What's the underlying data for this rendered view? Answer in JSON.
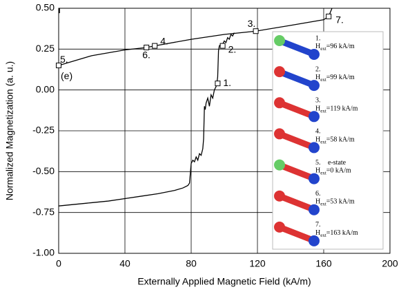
{
  "chart_data": {
    "type": "line",
    "x_label": "Externally Applied Magnetic Field (kA/m)",
    "y_label": "Normalized Magnetization (a. u.)",
    "xlim": [
      0,
      200
    ],
    "ylim": [
      -1.0,
      0.5
    ],
    "xticks": [
      0,
      40,
      80,
      120,
      160,
      200
    ],
    "yticks": [
      {
        "value": -1.0,
        "label": "-1.00"
      },
      {
        "value": -0.75,
        "label": "-0.75"
      },
      {
        "value": -0.5,
        "label": "-0.50"
      },
      {
        "value": -0.25,
        "label": "-0.25"
      },
      {
        "value": 0,
        "label": "0.00"
      },
      {
        "value": 0.25,
        "label": "0.25"
      },
      {
        "value": 0.5,
        "label": "0.50"
      }
    ],
    "grid": true,
    "series": [
      {
        "color": "#000000",
        "x": [
          0,
          10,
          20,
          30,
          40,
          50,
          60,
          70,
          75,
          78,
          79,
          80,
          81,
          82,
          83,
          84,
          85,
          86,
          87,
          87.5,
          88,
          88.5,
          89,
          90,
          91,
          92,
          93,
          94,
          95,
          95.5,
          96,
          96.5,
          97,
          98,
          99,
          100,
          101,
          102,
          103,
          104,
          105,
          106
        ],
        "values": [
          -0.71,
          -0.7,
          -0.69,
          -0.68,
          -0.665,
          -0.65,
          -0.635,
          -0.615,
          -0.6,
          -0.585,
          -0.57,
          -0.45,
          -0.43,
          -0.44,
          -0.41,
          -0.43,
          -0.39,
          -0.4,
          -0.36,
          -0.3,
          -0.1,
          -0.12,
          -0.08,
          -0.05,
          -0.1,
          -0.03,
          -0.05,
          0.0,
          0.02,
          0.04,
          0.08,
          0.24,
          0.27,
          0.28,
          0.28,
          0.3,
          0.29,
          0.32,
          0.31,
          0.34,
          0.33,
          0.35
        ]
      },
      {
        "color": "#000000",
        "x": [
          0,
          20,
          40,
          53,
          58,
          80,
          100,
          119,
          140,
          160,
          163,
          165
        ],
        "values": [
          0.15,
          0.21,
          0.245,
          0.26,
          0.27,
          0.31,
          0.34,
          0.36,
          0.395,
          0.43,
          0.45,
          0.5
        ]
      },
      {
        "color": "#000000",
        "x": [
          0.5,
          0.5
        ],
        "values": [
          0.47,
          0.5
        ]
      }
    ],
    "points": [
      {
        "label": "1.",
        "x": 96,
        "y": 0.04
      },
      {
        "label": "2.",
        "x": 99,
        "y": 0.27
      },
      {
        "label": "3.",
        "x": 119,
        "y": 0.36
      },
      {
        "label": "4.",
        "x": 58,
        "y": 0.27
      },
      {
        "label": "5.",
        "x": 0,
        "y": 0.15
      },
      {
        "label": "6.",
        "x": 53,
        "y": 0.26
      },
      {
        "label": "7.",
        "x": 163,
        "y": 0.45
      }
    ],
    "annotation": "(e)",
    "inset": [
      {
        "number": "1.",
        "symbol": "H",
        "subscript": "ext",
        "text": "=96 kA/m"
      },
      {
        "number": "2.",
        "symbol": "H",
        "subscript": "ext",
        "text": "=99 kA/m"
      },
      {
        "number": "3.",
        "symbol": "H",
        "subscript": "ext",
        "text": "=119 kA/m"
      },
      {
        "number": "4.",
        "symbol": "H",
        "subscript": "ext",
        "text": "=58 kA/m"
      },
      {
        "number": "5.",
        "note": "e-state",
        "symbol": "H",
        "subscript": "ext",
        "text": "=0 kA/m"
      },
      {
        "number": "6.",
        "symbol": "H",
        "subscript": "ext",
        "text": "=53 kA/m"
      },
      {
        "number": "7.",
        "symbol": "H",
        "subscript": "ext",
        "text": "=163 kA/m"
      }
    ]
  }
}
